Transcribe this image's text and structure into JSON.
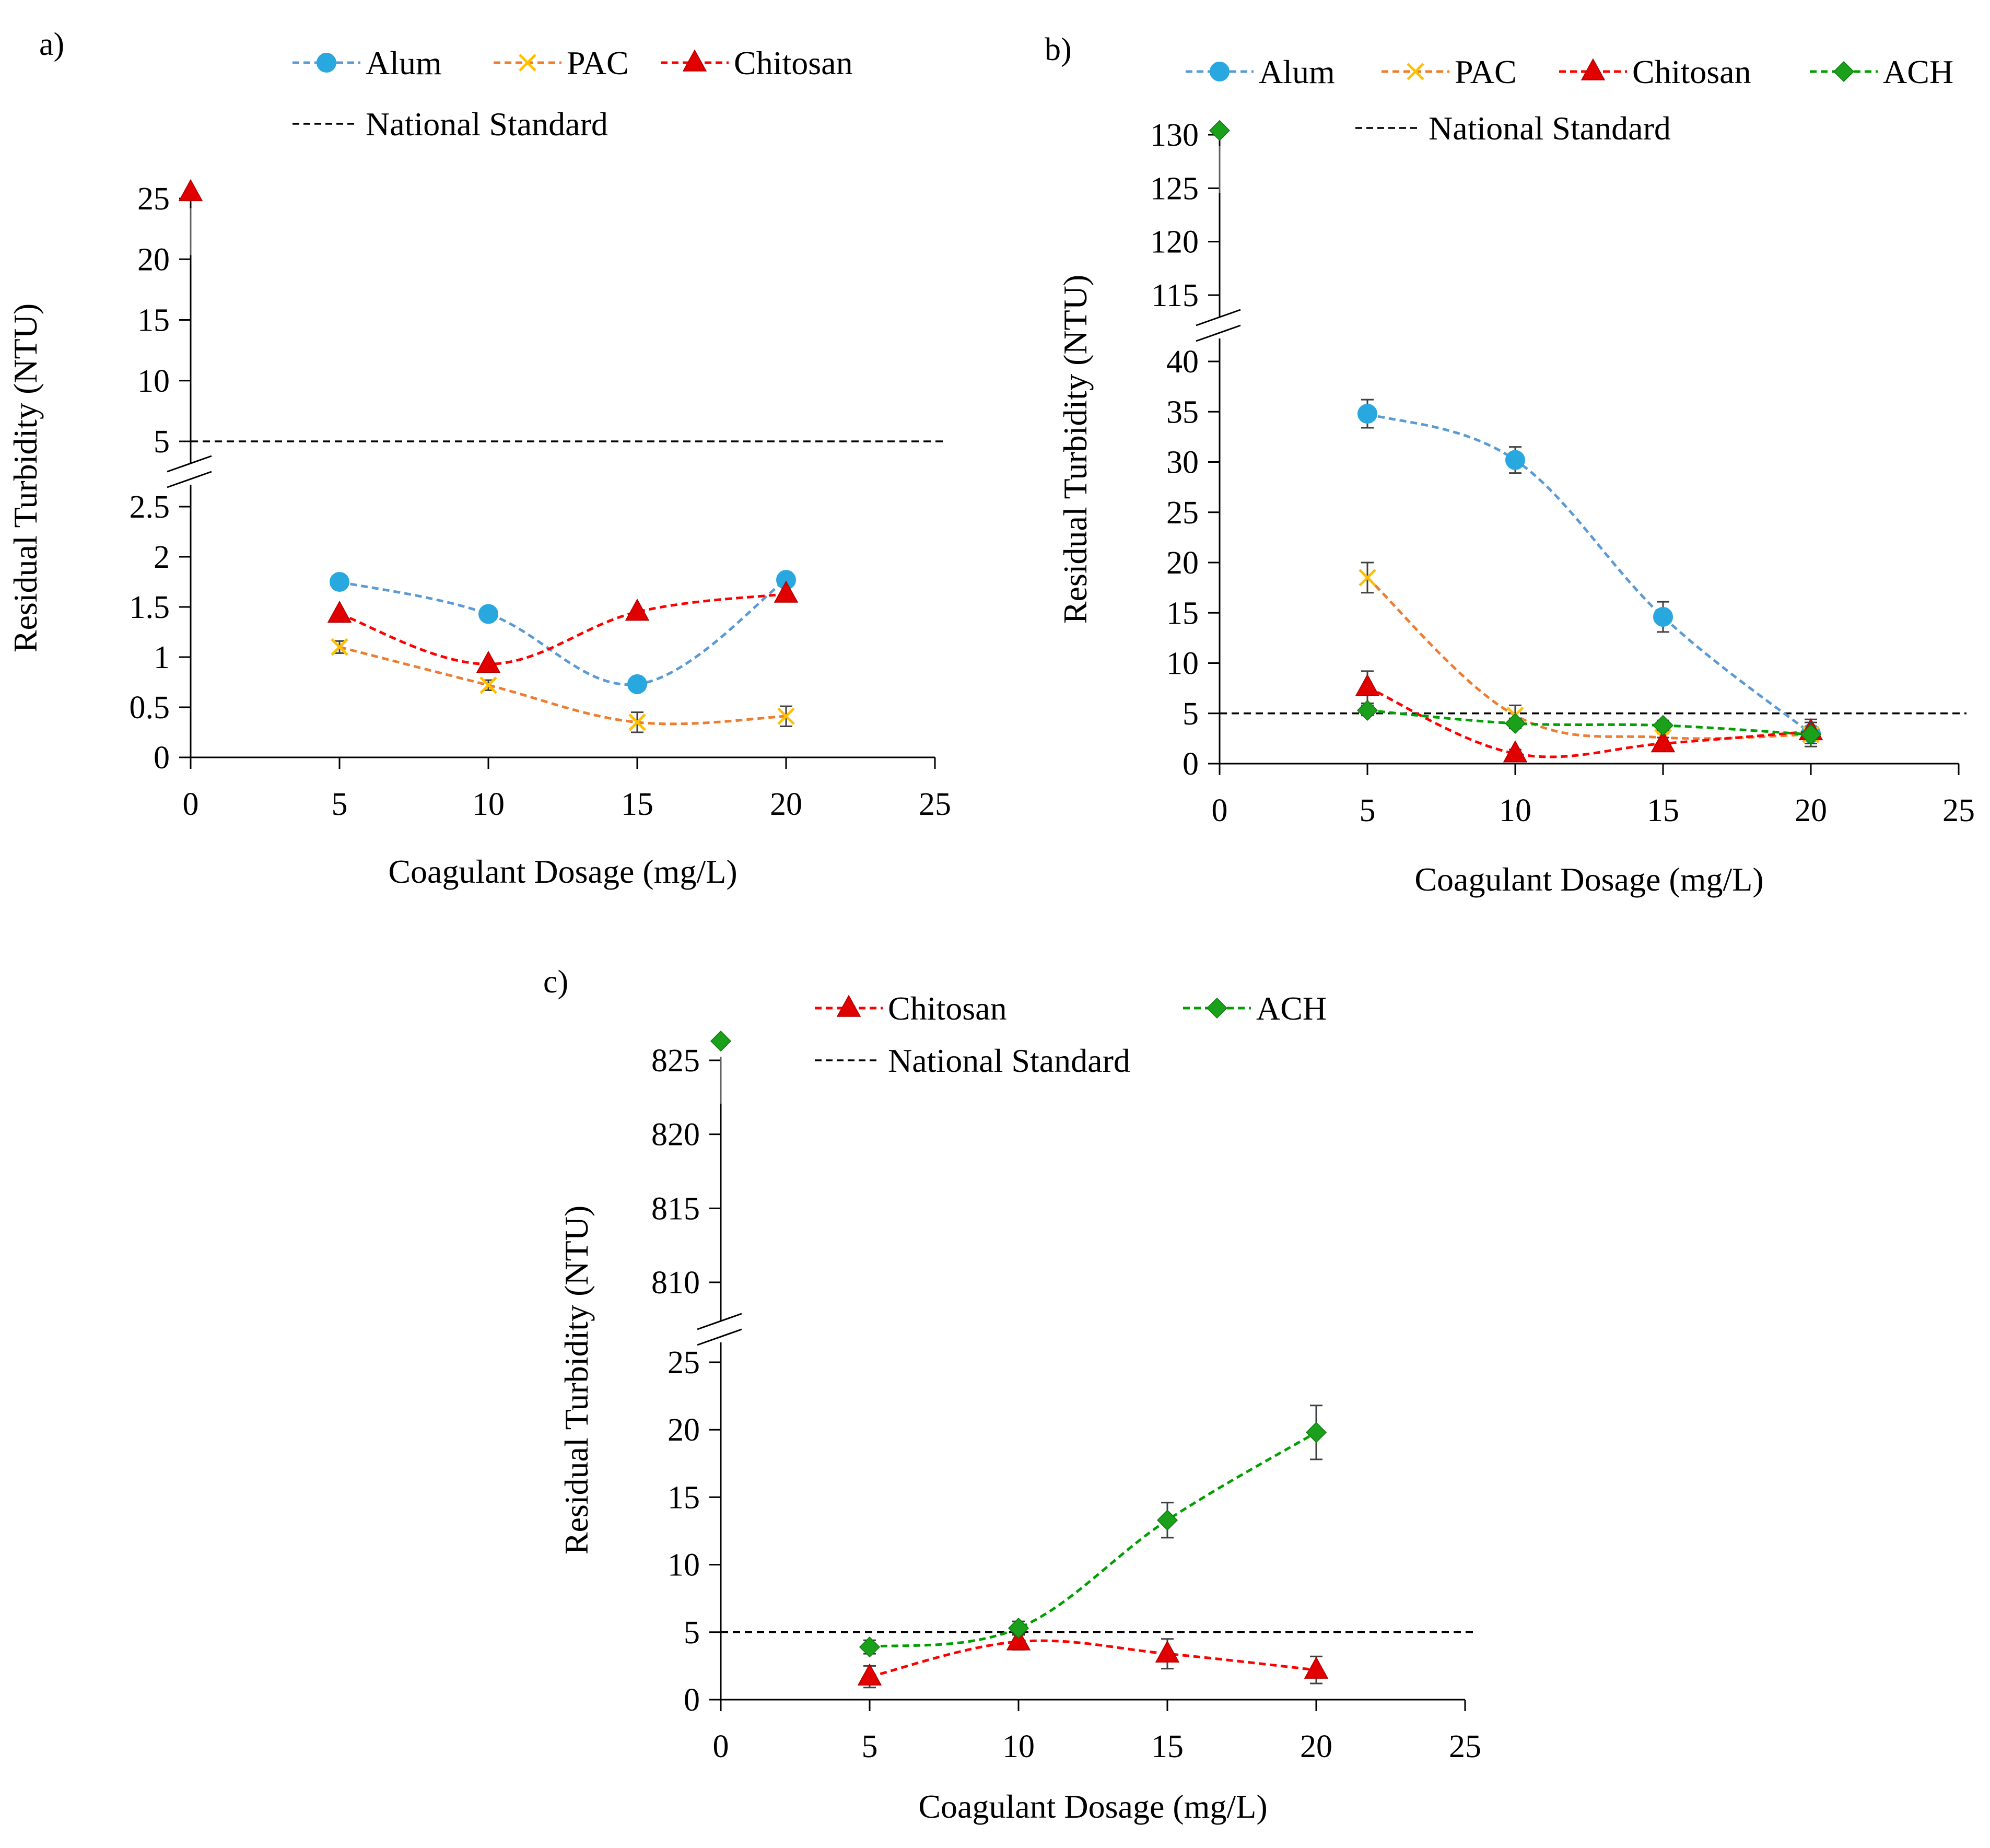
{
  "chart_data": [
    {
      "panel_label": "a)",
      "type": "line",
      "xlabel": "Coagulant Dosage (mg/L)",
      "ylabel": "Residual Turbidity (NTU)",
      "xlim": [
        0,
        25
      ],
      "x_ticks": [
        "0",
        "5",
        "10",
        "15",
        "20",
        "25"
      ],
      "y_lower": {
        "range": [
          0,
          2.5
        ],
        "ticks": [
          "0",
          "0.5",
          "1",
          "1.5",
          "2",
          "2.5"
        ]
      },
      "y_upper": {
        "range": [
          5,
          25
        ],
        "ticks": [
          "5",
          "10",
          "15",
          "20",
          "25"
        ]
      },
      "axis_break": true,
      "legend_position": "top",
      "series": [
        {
          "name": "Alum",
          "color": "#5b9bd5",
          "marker": "circle",
          "marker_color": "#29a8e0",
          "points": [
            {
              "x": 5,
              "y": 1.75
            },
            {
              "x": 10,
              "y": 1.43
            },
            {
              "x": 15,
              "y": 0.73
            },
            {
              "x": 20,
              "y": 1.77
            }
          ],
          "errors": [
            0,
            0,
            0,
            0
          ]
        },
        {
          "name": "PAC",
          "color": "#ed7d31",
          "marker": "x",
          "marker_color": "#ffc000",
          "points": [
            {
              "x": 5,
              "y": 1.1
            },
            {
              "x": 10,
              "y": 0.72
            },
            {
              "x": 15,
              "y": 0.35
            },
            {
              "x": 20,
              "y": 0.41
            }
          ],
          "errors": [
            0.06,
            0.05,
            0.1,
            0.1
          ]
        },
        {
          "name": "Chitosan",
          "color": "#ff0000",
          "marker": "triangle",
          "marker_color": "#e00000",
          "points": [
            {
              "x": 0,
              "y": 25.5
            },
            {
              "x": 5,
              "y": 1.43
            },
            {
              "x": 10,
              "y": 0.93
            },
            {
              "x": 15,
              "y": 1.45
            },
            {
              "x": 20,
              "y": 1.63
            }
          ],
          "errors": [
            0,
            0,
            0,
            0,
            0
          ]
        }
      ],
      "reference_line": {
        "name": "National Standard",
        "y": 5,
        "color": "#000000"
      }
    },
    {
      "panel_label": "b)",
      "type": "line",
      "xlabel": "Coagulant Dosage (mg/L)",
      "ylabel": "Residual Turbidity (NTU)",
      "xlim": [
        0,
        25
      ],
      "x_ticks": [
        "0",
        "5",
        "10",
        "15",
        "20",
        "25"
      ],
      "y_lower": {
        "range": [
          0,
          40
        ],
        "ticks": [
          "0",
          "5",
          "10",
          "15",
          "20",
          "25",
          "30",
          "35",
          "40"
        ]
      },
      "y_upper": {
        "range": [
          115,
          130
        ],
        "ticks": [
          "115",
          "120",
          "125",
          "130"
        ]
      },
      "axis_break": true,
      "legend_position": "top",
      "series": [
        {
          "name": "Alum",
          "color": "#5b9bd5",
          "marker": "circle",
          "marker_color": "#29a8e0",
          "points": [
            {
              "x": 5,
              "y": 34.8
            },
            {
              "x": 10,
              "y": 30.2
            },
            {
              "x": 15,
              "y": 14.6
            },
            {
              "x": 20,
              "y": 3.0
            }
          ],
          "errors": [
            1.4,
            1.3,
            1.5,
            0
          ]
        },
        {
          "name": "PAC",
          "color": "#ed7d31",
          "marker": "x",
          "marker_color": "#ffc000",
          "points": [
            {
              "x": 5,
              "y": 18.5
            },
            {
              "x": 10,
              "y": 4.8
            },
            {
              "x": 15,
              "y": 2.6
            },
            {
              "x": 20,
              "y": 2.9
            }
          ],
          "errors": [
            1.5,
            1.0,
            0.4,
            0
          ]
        },
        {
          "name": "Chitosan",
          "color": "#ff0000",
          "marker": "triangle",
          "marker_color": "#e00000",
          "points": [
            {
              "x": 5,
              "y": 7.6
            },
            {
              "x": 10,
              "y": 1.0
            },
            {
              "x": 15,
              "y": 2.0
            },
            {
              "x": 20,
              "y": 3.2
            }
          ],
          "errors": [
            1.6,
            0.4,
            0.6,
            1.2
          ]
        },
        {
          "name": "ACH",
          "color": "#00a000",
          "marker": "diamond",
          "marker_color": "#1aa01a",
          "points": [
            {
              "x": 0,
              "y": 130.4
            },
            {
              "x": 5,
              "y": 5.3
            },
            {
              "x": 10,
              "y": 4.0
            },
            {
              "x": 15,
              "y": 3.8
            },
            {
              "x": 20,
              "y": 2.9
            }
          ],
          "errors": [
            0,
            0.5,
            0.5,
            0.5,
            1.2
          ]
        }
      ],
      "reference_line": {
        "name": "National Standard",
        "y": 5,
        "color": "#000000"
      }
    },
    {
      "panel_label": "c)",
      "type": "line",
      "xlabel": "Coagulant Dosage (mg/L)",
      "ylabel": "Residual Turbidity (NTU)",
      "xlim": [
        0,
        25
      ],
      "x_ticks": [
        "0",
        "5",
        "10",
        "15",
        "20",
        "25"
      ],
      "y_lower": {
        "range": [
          0,
          25
        ],
        "ticks": [
          "0",
          "5",
          "10",
          "15",
          "20",
          "25"
        ]
      },
      "y_upper": {
        "range": [
          810,
          825
        ],
        "ticks": [
          "810",
          "815",
          "820",
          "825"
        ]
      },
      "axis_break": true,
      "legend_position": "top",
      "series": [
        {
          "name": "Chitosan",
          "color": "#ff0000",
          "marker": "triangle",
          "marker_color": "#e00000",
          "points": [
            {
              "x": 5,
              "y": 1.7
            },
            {
              "x": 10,
              "y": 4.3
            },
            {
              "x": 15,
              "y": 3.4
            },
            {
              "x": 20,
              "y": 2.2
            }
          ],
          "errors": [
            0.8,
            0.6,
            1.1,
            1.0
          ]
        },
        {
          "name": "ACH",
          "color": "#00a000",
          "marker": "diamond",
          "marker_color": "#1aa01a",
          "points": [
            {
              "x": 0,
              "y": 826.3
            },
            {
              "x": 5,
              "y": 3.9
            },
            {
              "x": 10,
              "y": 5.3
            },
            {
              "x": 15,
              "y": 13.3
            },
            {
              "x": 20,
              "y": 19.8
            }
          ],
          "errors": [
            0,
            0.5,
            0.5,
            1.3,
            2.0
          ]
        }
      ],
      "reference_line": {
        "name": "National Standard",
        "y": 5,
        "color": "#000000"
      }
    }
  ]
}
